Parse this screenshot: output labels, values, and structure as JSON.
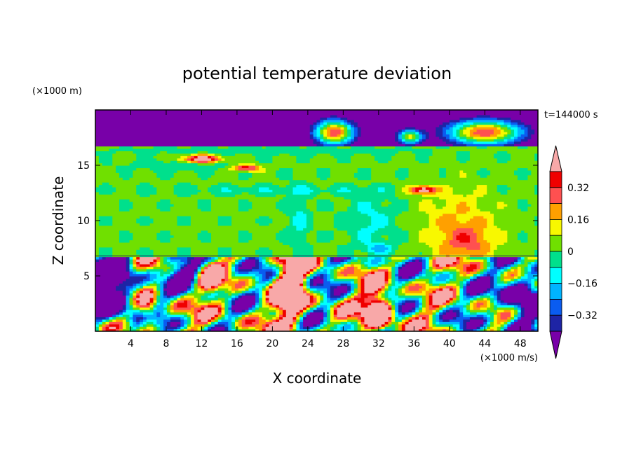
{
  "chart_data": {
    "type": "heatmap",
    "title": "potential temperature deviation",
    "xlabel": "X coordinate",
    "ylabel": "Z coordinate",
    "x_unit": "(×1000 m/s)",
    "y_unit": "(×1000 m)",
    "time_label": "t=144000 s",
    "xlim": [
      0,
      50
    ],
    "ylim": [
      0,
      20
    ],
    "x_ticks": [
      4,
      8,
      12,
      16,
      20,
      24,
      28,
      32,
      36,
      40,
      44,
      48
    ],
    "y_ticks": [
      5,
      10,
      15
    ],
    "grid": false,
    "colorbar": {
      "tick_labels": [
        "0.32",
        "0.16",
        "0",
        "−0.16",
        "−0.32"
      ],
      "tick_values": [
        0.32,
        0.16,
        0,
        -0.16,
        -0.32
      ],
      "levels": [
        -0.4,
        -0.32,
        -0.24,
        -0.16,
        -0.08,
        0,
        0.08,
        0.16,
        0.24,
        0.32,
        0.4
      ],
      "colors": [
        "#7800a8",
        "#1e24a5",
        "#0a5cf0",
        "#00b4ff",
        "#00ffff",
        "#00e08c",
        "#70e000",
        "#f8f800",
        "#ffa000",
        "#ff5050",
        "#f00000",
        "#f8a8a8"
      ]
    },
    "features": {
      "stratosphere_band_z": [
        16.8,
        20
      ],
      "stratosphere_value": "below -0.4",
      "inversion_z": 6.8,
      "warm_plumes": [
        {
          "x": [
            20,
            24
          ],
          "z": [
            1,
            6.8
          ],
          "value": "above 0.4"
        },
        {
          "x": [
            30,
            34
          ],
          "z": [
            0,
            4
          ],
          "value": "above 0.4"
        },
        {
          "x": [
            24,
            31
          ],
          "z": [
            16.5,
            19.5
          ],
          "value": "above 0.4"
        },
        {
          "x": [
            39,
            50
          ],
          "z": [
            16.8,
            19.5
          ],
          "value": "above 0.4"
        }
      ]
    }
  }
}
